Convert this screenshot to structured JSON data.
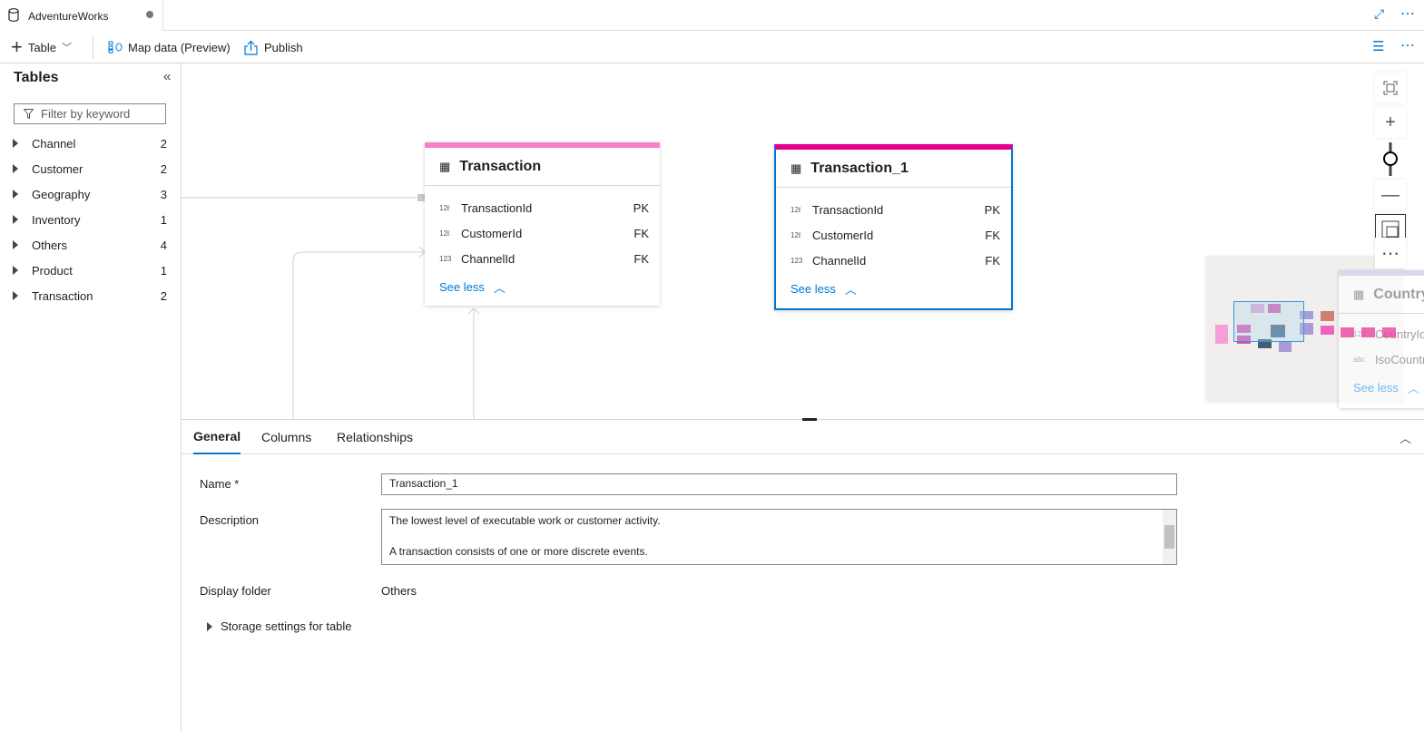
{
  "tab": {
    "title": "AdventureWorks",
    "icon": "database-icon",
    "unsaved": true
  },
  "toolbar": {
    "table": "Table",
    "map_data": "Map data (Preview)",
    "publish": "Publish"
  },
  "sidebar": {
    "title": "Tables",
    "filter_placeholder": "Filter by keyword",
    "items": [
      {
        "label": "Channel",
        "count": "2"
      },
      {
        "label": "Customer",
        "count": "2"
      },
      {
        "label": "Geography",
        "count": "3"
      },
      {
        "label": "Inventory",
        "count": "1"
      },
      {
        "label": "Others",
        "count": "4"
      },
      {
        "label": "Product",
        "count": "1"
      },
      {
        "label": "Transaction",
        "count": "2"
      }
    ]
  },
  "canvas": {
    "cards": [
      {
        "title": "Transaction",
        "accent": "#f77fc9",
        "rows": [
          {
            "type": "12ℓ",
            "name": "TransactionId",
            "key": "PK"
          },
          {
            "type": "12ℓ",
            "name": "CustomerId",
            "key": "FK"
          },
          {
            "type": "123",
            "name": "ChannelId",
            "key": "FK"
          }
        ],
        "see_less": "See less"
      },
      {
        "title": "Transaction_1",
        "accent": "#e3008c",
        "selected": true,
        "rows": [
          {
            "type": "12ℓ",
            "name": "TransactionId",
            "key": "PK"
          },
          {
            "type": "12ℓ",
            "name": "CustomerId",
            "key": "FK"
          },
          {
            "type": "123",
            "name": "ChannelId",
            "key": "FK"
          }
        ],
        "see_less": "See less"
      }
    ],
    "partial_card": {
      "title": "Country",
      "rows": [
        {
          "type": "123",
          "name": "CountryId"
        },
        {
          "type": "abc",
          "name": "IsoCountry"
        }
      ],
      "see_less": "See less"
    }
  },
  "details": {
    "tabs": [
      "General",
      "Columns",
      "Relationships"
    ],
    "active_tab": "General",
    "name_label": "Name *",
    "name_value": "Transaction_1",
    "description_label": "Description",
    "description_line1": "The lowest level of executable work or customer activity.",
    "description_line2": "A transaction consists of one or more discrete events.",
    "folder_label": "Display folder",
    "folder_value": "Others",
    "storage": "Storage settings for table"
  },
  "colors": {
    "accent": "#0078d4"
  }
}
